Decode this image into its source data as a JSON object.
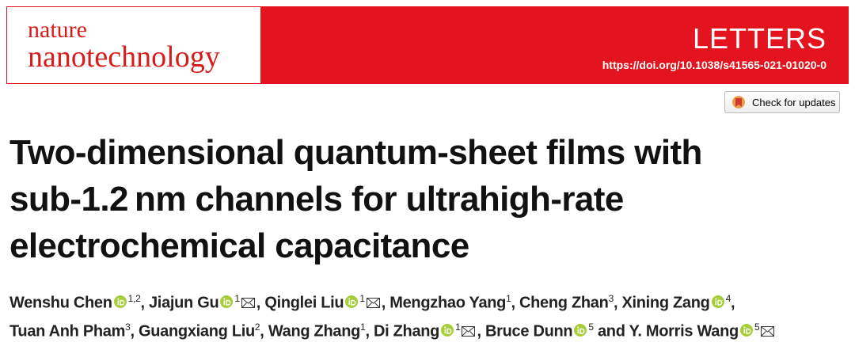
{
  "header": {
    "journal": [
      "nature",
      "nanotechnology"
    ],
    "section": "LETTERS",
    "doi": "https://doi.org/10.1038/s41565-021-01020-0"
  },
  "check_updates": "Check for updates",
  "title_lines": [
    "Two-dimensional quantum-sheet films with",
    "sub-1.2 nm channels for ultrahigh-rate",
    "electrochemical capacitance"
  ],
  "author_lines": [
    [
      {
        "name": "Wenshu Chen",
        "orcid": true,
        "affiliations": "1,2",
        "email": false,
        "separator": ", "
      },
      {
        "name": "Jiajun Gu",
        "orcid": true,
        "affiliations": "1",
        "email": true,
        "separator": ", "
      },
      {
        "name": "Qinglei Liu",
        "orcid": true,
        "affiliations": "1",
        "email": true,
        "separator": ", "
      },
      {
        "name": "Mengzhao Yang",
        "orcid": false,
        "affiliations": "1",
        "email": false,
        "separator": ", "
      },
      {
        "name": "Cheng Zhan",
        "orcid": false,
        "affiliations": "3",
        "email": false,
        "separator": ", "
      },
      {
        "name": "Xining Zang",
        "orcid": true,
        "affiliations": "4",
        "email": false,
        "separator": ","
      }
    ],
    [
      {
        "name": "Tuan Anh Pham",
        "orcid": false,
        "affiliations": "3",
        "email": false,
        "separator": ", "
      },
      {
        "name": "Guangxiang Liu",
        "orcid": false,
        "affiliations": "2",
        "email": false,
        "separator": ", "
      },
      {
        "name": "Wang Zhang",
        "orcid": false,
        "affiliations": "1",
        "email": false,
        "separator": ", "
      },
      {
        "name": "Di Zhang",
        "orcid": true,
        "affiliations": "1",
        "email": true,
        "separator": ", "
      },
      {
        "name": "Bruce Dunn",
        "orcid": true,
        "affiliations": "5",
        "email": false,
        "separator": " and "
      },
      {
        "name": "Y. Morris Wang",
        "orcid": true,
        "affiliations": "5",
        "email": true
      }
    ]
  ]
}
